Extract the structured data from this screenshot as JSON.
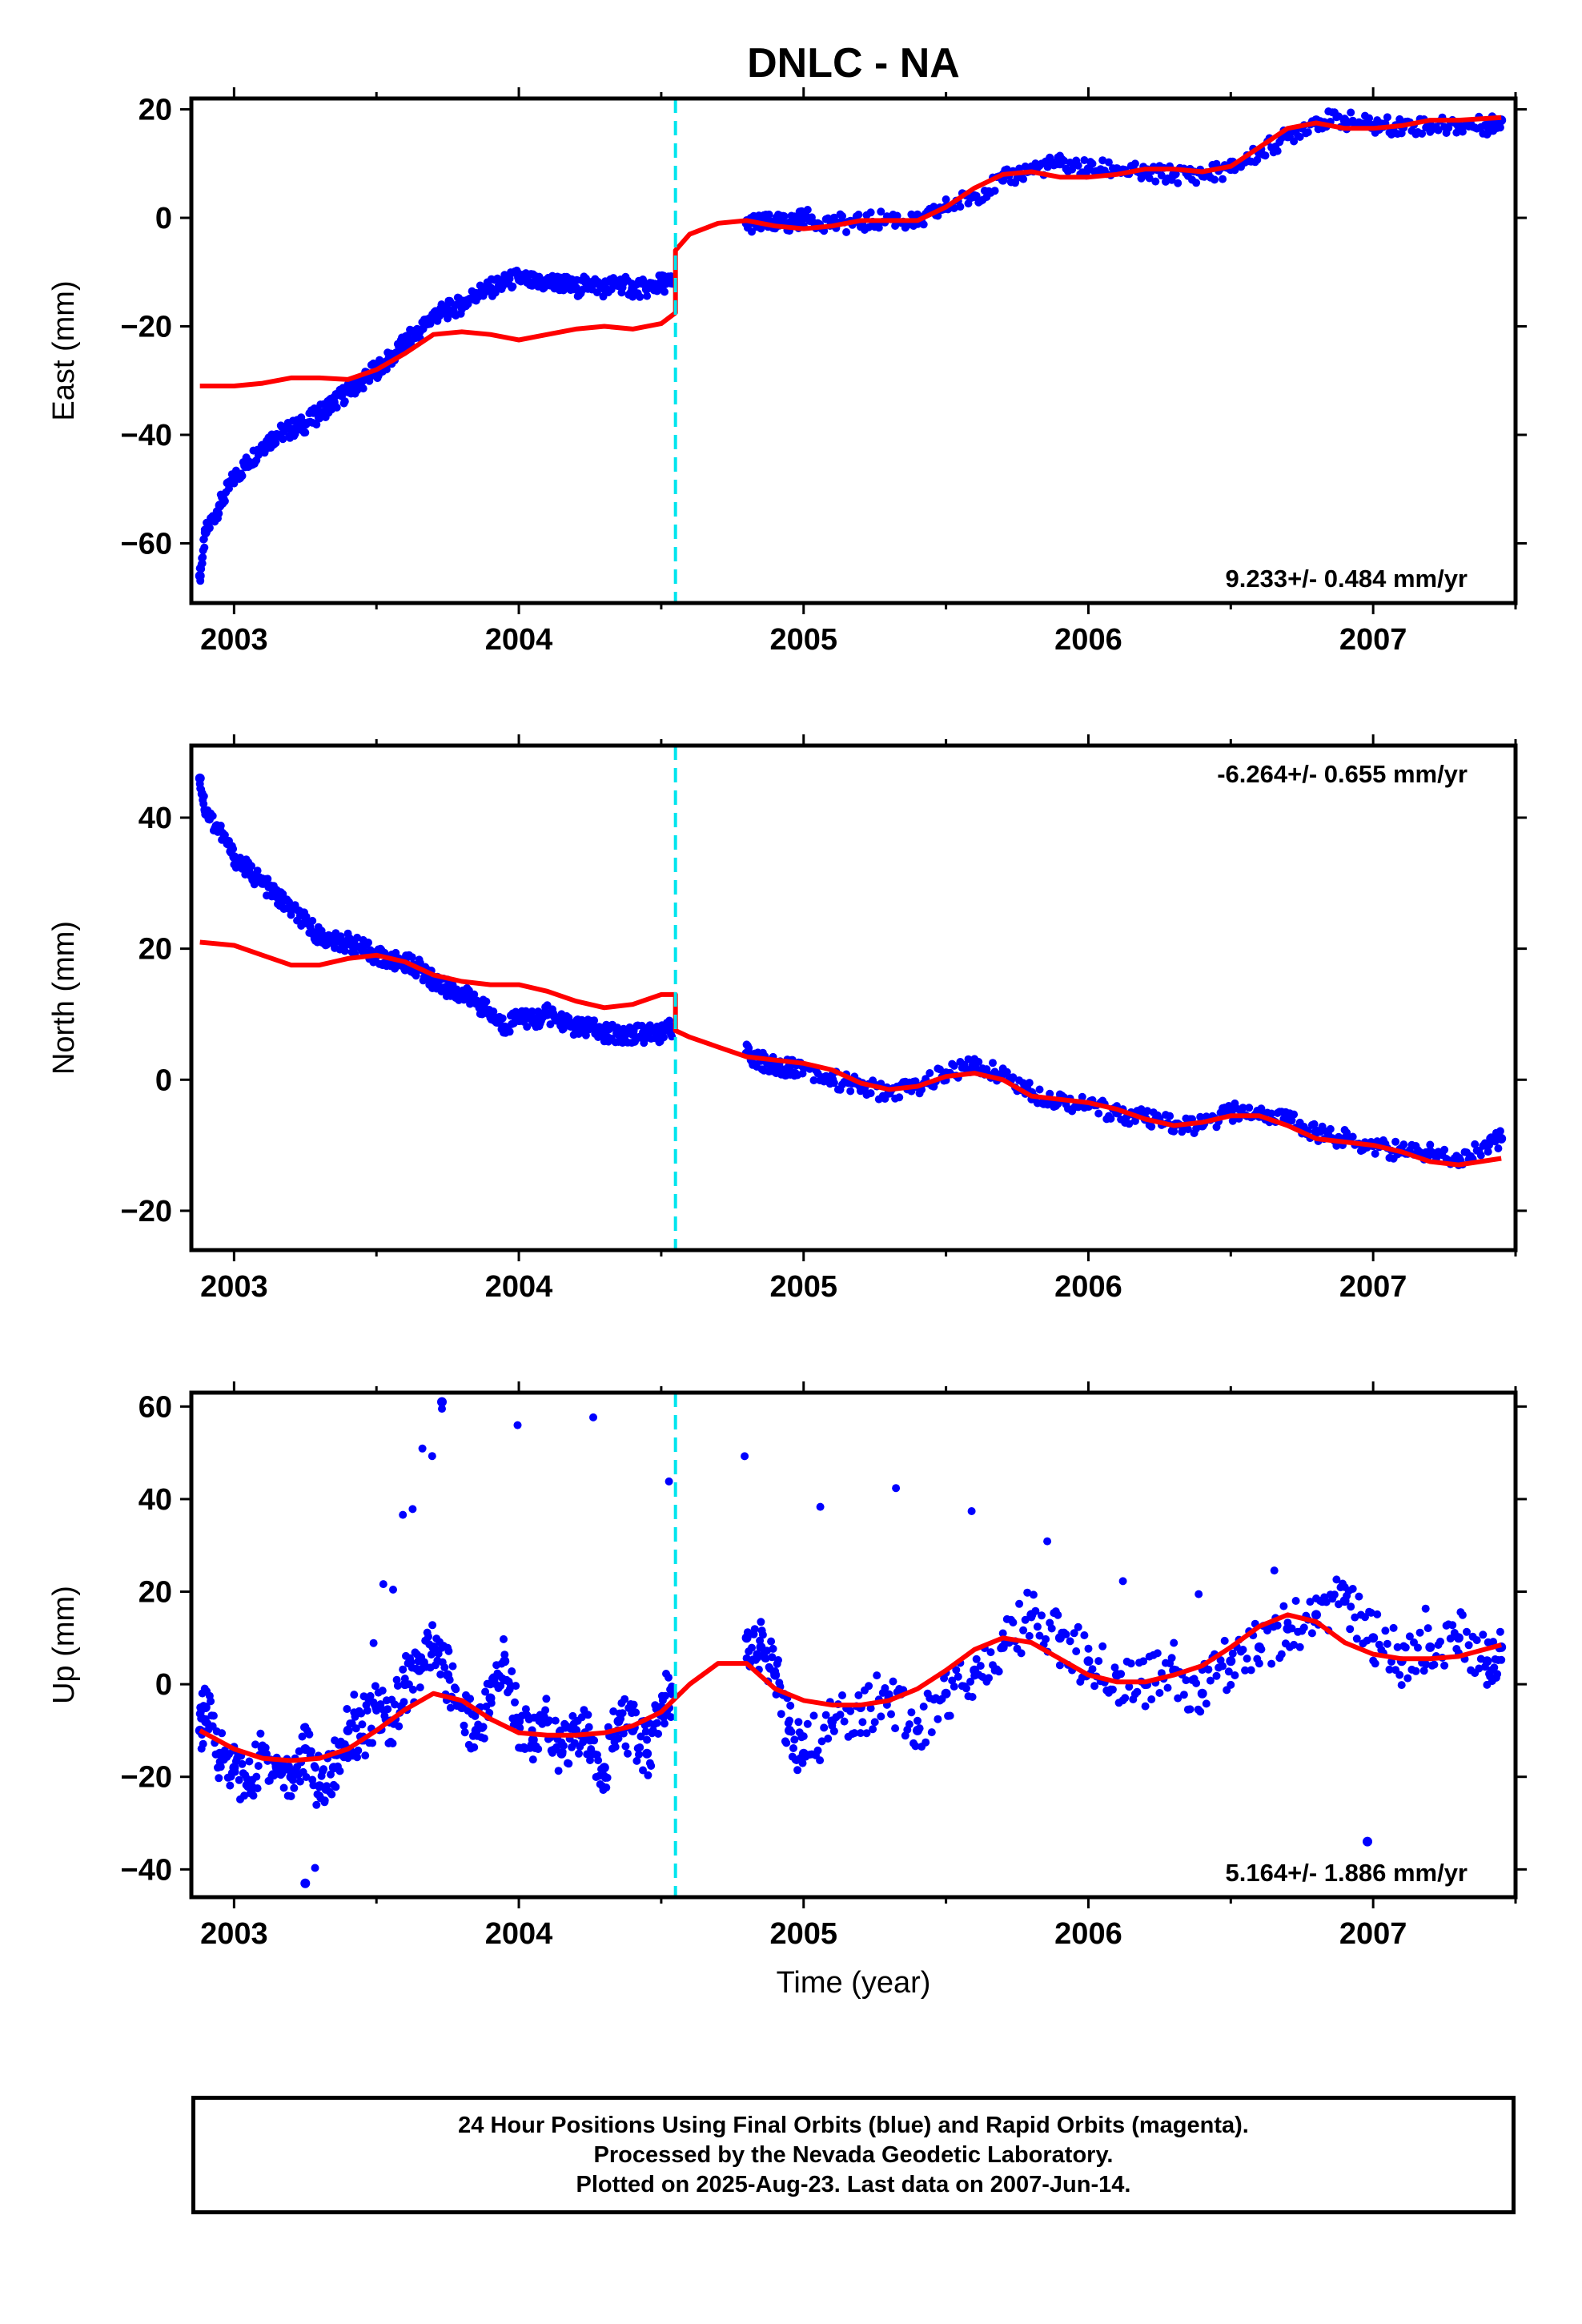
{
  "title": "DNLC - NA",
  "xlabel": "Time (year)",
  "colors": {
    "points": "#0000ff",
    "model": "#ff0000",
    "event_line": "#00e5ee",
    "frame": "#000000"
  },
  "chart_data": [
    {
      "type": "scatter",
      "ylabel": "East (mm)",
      "rate_label": "9.233+/- 0.484 mm/yr",
      "rate_position": "bottom-right",
      "xlim": [
        2002.85,
        2007.5
      ],
      "ylim": [
        -71,
        22
      ],
      "x_ticks": [
        "2003",
        "2004",
        "2005",
        "2006",
        "2007"
      ],
      "y_ticks": [
        -60,
        -40,
        -20,
        0,
        20
      ],
      "event_line_x": 2004.55,
      "observations": {
        "name": "Final Orbits",
        "x": [
          2002.88,
          2002.9,
          2002.95,
          2003.0,
          2003.05,
          2003.1,
          2003.15,
          2003.2,
          2003.25,
          2003.3,
          2003.35,
          2003.4,
          2003.45,
          2003.5,
          2003.55,
          2003.6,
          2003.65,
          2003.7,
          2003.75,
          2003.8,
          2003.85,
          2003.9,
          2003.95,
          2004.0,
          2004.05,
          2004.1,
          2004.15,
          2004.2,
          2004.25,
          2004.3,
          2004.35,
          2004.4,
          2004.45,
          2004.5,
          2004.54,
          2004.8,
          2004.85,
          2004.9,
          2004.95,
          2005.0,
          2005.1,
          2005.2,
          2005.3,
          2005.4,
          2005.5,
          2005.6,
          2005.7,
          2005.8,
          2005.9,
          2006.0,
          2006.1,
          2006.2,
          2006.3,
          2006.4,
          2006.5,
          2006.6,
          2006.7,
          2006.8,
          2006.9,
          2007.0,
          2007.1,
          2007.2,
          2007.3,
          2007.4,
          2007.45
        ],
        "y": [
          -66,
          -58,
          -53,
          -48,
          -45,
          -42,
          -40,
          -39,
          -38,
          -36,
          -34,
          -32,
          -30,
          -28,
          -26,
          -23,
          -21,
          -18,
          -17,
          -16,
          -14,
          -13,
          -12,
          -11,
          -12,
          -12,
          -12,
          -13,
          -12,
          -13,
          -12,
          -13,
          -13,
          -12,
          -12,
          -1,
          -1,
          -1,
          -1,
          0,
          -1,
          -1,
          0,
          -1,
          2,
          4,
          7,
          9,
          10,
          9,
          9,
          8,
          8,
          8,
          9,
          12,
          15,
          18,
          18,
          17,
          17,
          17,
          17,
          17,
          18
        ]
      },
      "model": {
        "name": "Model",
        "x": [
          2002.88,
          2003.0,
          2003.1,
          2003.2,
          2003.3,
          2003.4,
          2003.5,
          2003.6,
          2003.7,
          2003.8,
          2003.9,
          2004.0,
          2004.1,
          2004.2,
          2004.3,
          2004.4,
          2004.5,
          2004.55,
          2004.55,
          2004.6,
          2004.7,
          2004.8,
          2004.9,
          2005.0,
          2005.1,
          2005.2,
          2005.3,
          2005.4,
          2005.5,
          2005.6,
          2005.7,
          2005.8,
          2005.9,
          2006.0,
          2006.1,
          2006.2,
          2006.3,
          2006.4,
          2006.5,
          2006.6,
          2006.7,
          2006.8,
          2006.9,
          2007.0,
          2007.1,
          2007.2,
          2007.3,
          2007.45
        ],
        "y": [
          -31,
          -31,
          -30.5,
          -29.5,
          -29.5,
          -29.8,
          -28,
          -25,
          -21.5,
          -21,
          -21.5,
          -22.5,
          -21.5,
          -20.5,
          -20,
          -20.5,
          -19.5,
          -17.5,
          -6,
          -3,
          -1,
          -0.5,
          -1.5,
          -2,
          -1.5,
          -0.5,
          -0.5,
          -0.5,
          2,
          5.5,
          8,
          8.5,
          7.5,
          7.5,
          8,
          9,
          9,
          8.5,
          9.5,
          13,
          16.5,
          17.5,
          16.5,
          16.5,
          17,
          18,
          18,
          18.5
        ]
      }
    },
    {
      "type": "scatter",
      "ylabel": "North (mm)",
      "rate_label": "-6.264+/- 0.655 mm/yr",
      "rate_position": "top-right",
      "xlim": [
        2002.85,
        2007.5
      ],
      "ylim": [
        -26,
        51
      ],
      "x_ticks": [
        "2003",
        "2004",
        "2005",
        "2006",
        "2007"
      ],
      "y_ticks": [
        -20,
        0,
        20,
        40
      ],
      "event_line_x": 2004.55,
      "observations": {
        "name": "Final Orbits",
        "x": [
          2002.88,
          2002.9,
          2002.95,
          2003.0,
          2003.05,
          2003.1,
          2003.15,
          2003.2,
          2003.25,
          2003.3,
          2003.35,
          2003.4,
          2003.45,
          2003.5,
          2003.55,
          2003.6,
          2003.65,
          2003.7,
          2003.75,
          2003.8,
          2003.85,
          2003.9,
          2003.95,
          2004.0,
          2004.05,
          2004.1,
          2004.15,
          2004.2,
          2004.25,
          2004.3,
          2004.35,
          2004.4,
          2004.45,
          2004.5,
          2004.54,
          2004.8,
          2004.85,
          2004.9,
          2004.95,
          2005.0,
          2005.1,
          2005.2,
          2005.3,
          2005.4,
          2005.5,
          2005.6,
          2005.7,
          2005.8,
          2005.9,
          2006.0,
          2006.1,
          2006.2,
          2006.3,
          2006.4,
          2006.5,
          2006.6,
          2006.7,
          2006.8,
          2006.9,
          2007.0,
          2007.1,
          2007.2,
          2007.3,
          2007.4,
          2007.45
        ],
        "y": [
          46,
          41,
          38,
          34,
          32,
          30,
          28,
          26,
          24,
          22,
          21,
          21,
          20,
          19,
          18,
          18,
          17,
          15,
          14,
          13,
          12,
          10,
          8,
          10,
          9,
          10,
          9,
          8,
          8,
          7,
          7,
          7,
          7,
          7,
          8,
          4,
          3,
          2,
          2,
          2,
          0,
          -1,
          -2,
          -1,
          1,
          2,
          1,
          -2,
          -3,
          -4,
          -5,
          -6,
          -7,
          -7,
          -5,
          -5,
          -6,
          -8,
          -9,
          -10,
          -11,
          -11,
          -12,
          -10,
          -9
        ]
      },
      "model": {
        "name": "Model",
        "x": [
          2002.88,
          2003.0,
          2003.1,
          2003.2,
          2003.3,
          2003.4,
          2003.5,
          2003.6,
          2003.7,
          2003.8,
          2003.9,
          2004.0,
          2004.1,
          2004.2,
          2004.3,
          2004.4,
          2004.5,
          2004.55,
          2004.55,
          2004.6,
          2004.7,
          2004.8,
          2004.9,
          2005.0,
          2005.1,
          2005.2,
          2005.3,
          2005.4,
          2005.5,
          2005.6,
          2005.7,
          2005.8,
          2005.9,
          2006.0,
          2006.1,
          2006.2,
          2006.3,
          2006.4,
          2006.5,
          2006.6,
          2006.7,
          2006.8,
          2006.9,
          2007.0,
          2007.1,
          2007.2,
          2007.3,
          2007.45
        ],
        "y": [
          21,
          20.5,
          19,
          17.5,
          17.5,
          18.5,
          19,
          18,
          16,
          15,
          14.5,
          14.5,
          13.5,
          12,
          11,
          11.5,
          13,
          13,
          7.5,
          6.5,
          5,
          3.5,
          3,
          2.5,
          1.5,
          -0.5,
          -1.5,
          -1,
          0.5,
          1,
          0,
          -2.5,
          -3,
          -3.5,
          -4.5,
          -6,
          -7,
          -6.5,
          -5.5,
          -5.5,
          -7,
          -9,
          -9.5,
          -10,
          -11,
          -12.5,
          -13,
          -12
        ]
      }
    },
    {
      "type": "scatter",
      "ylabel": "Up (mm)",
      "rate_label": "5.164+/- 1.886 mm/yr",
      "rate_position": "bottom-right",
      "xlim": [
        2002.85,
        2007.5
      ],
      "ylim": [
        -46,
        63
      ],
      "x_ticks": [
        "2003",
        "2004",
        "2005",
        "2006",
        "2007"
      ],
      "y_ticks": [
        -40,
        -20,
        0,
        20,
        40,
        60
      ],
      "event_line_x": 2004.55,
      "observations": {
        "name": "Final Orbits",
        "x": [
          2002.88,
          2002.9,
          2002.95,
          2003.0,
          2003.05,
          2003.1,
          2003.15,
          2003.2,
          2003.25,
          2003.3,
          2003.35,
          2003.4,
          2003.45,
          2003.5,
          2003.55,
          2003.6,
          2003.65,
          2003.7,
          2003.75,
          2003.8,
          2003.85,
          2003.9,
          2003.95,
          2004.0,
          2004.05,
          2004.1,
          2004.15,
          2004.2,
          2004.25,
          2004.3,
          2004.35,
          2004.4,
          2004.45,
          2004.5,
          2004.54,
          2004.8,
          2004.85,
          2004.9,
          2004.95,
          2005.0,
          2005.1,
          2005.2,
          2005.3,
          2005.4,
          2005.5,
          2005.6,
          2005.7,
          2005.8,
          2005.9,
          2006.0,
          2006.1,
          2006.2,
          2006.3,
          2006.4,
          2006.5,
          2006.6,
          2006.7,
          2006.8,
          2006.9,
          2007.0,
          2007.1,
          2007.2,
          2007.3,
          2007.4,
          2007.45,
          2003.73,
          2003.25,
          2006.98
        ],
        "y": [
          -10,
          -5,
          -15,
          -18,
          -22,
          -15,
          -18,
          -20,
          -14,
          -22,
          -18,
          -10,
          -12,
          -5,
          -8,
          0,
          3,
          8,
          2,
          -5,
          -10,
          -3,
          5,
          -8,
          -12,
          -8,
          -15,
          -10,
          -12,
          -18,
          -8,
          -10,
          -15,
          -5,
          -2,
          10,
          8,
          2,
          -10,
          -15,
          -8,
          -5,
          -3,
          -10,
          -2,
          3,
          8,
          15,
          10,
          5,
          2,
          0,
          3,
          -2,
          5,
          8,
          12,
          15,
          18,
          10,
          5,
          8,
          10,
          5,
          8,
          61,
          -43,
          -34
        ]
      },
      "model": {
        "name": "Model",
        "x": [
          2002.88,
          2003.0,
          2003.1,
          2003.2,
          2003.3,
          2003.4,
          2003.5,
          2003.6,
          2003.7,
          2003.8,
          2003.9,
          2004.0,
          2004.1,
          2004.2,
          2004.3,
          2004.4,
          2004.5,
          2004.6,
          2004.7,
          2004.8,
          2004.9,
          2005.0,
          2005.1,
          2005.2,
          2005.3,
          2005.4,
          2005.5,
          2005.6,
          2005.7,
          2005.8,
          2005.9,
          2006.0,
          2006.1,
          2006.2,
          2006.3,
          2006.4,
          2006.5,
          2006.6,
          2006.7,
          2006.8,
          2006.9,
          2007.0,
          2007.1,
          2007.2,
          2007.3,
          2007.45
        ],
        "y": [
          -10,
          -14,
          -16,
          -16.5,
          -16,
          -14,
          -10,
          -5.5,
          -2,
          -3.5,
          -7.5,
          -10.5,
          -11,
          -11,
          -10.5,
          -9,
          -6,
          0,
          4.5,
          4.5,
          -1,
          -3.5,
          -4.5,
          -4.5,
          -3.5,
          -1,
          3,
          7.5,
          10,
          9,
          5.5,
          2,
          0.5,
          0.5,
          2,
          4,
          8,
          12.5,
          15,
          13.5,
          9,
          6.5,
          5.5,
          5.5,
          6,
          8.5
        ]
      }
    }
  ],
  "footer": {
    "line1": "24 Hour Positions Using Final Orbits (blue) and Rapid Orbits (magenta).",
    "line2": "Processed by the Nevada Geodetic Laboratory.",
    "line3": "Plotted on 2025-Aug-23. Last data on 2007-Jun-14."
  }
}
